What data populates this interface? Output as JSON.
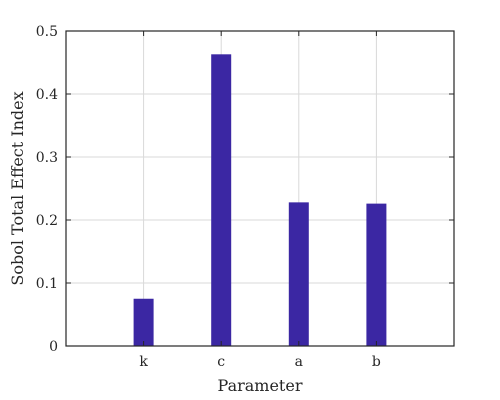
{
  "chart_data": {
    "type": "bar",
    "title": "",
    "xlabel": "Parameter",
    "ylabel": "Sobol Total Effect Index",
    "categories": [
      "k",
      "c",
      "a",
      "b"
    ],
    "values": [
      0.075,
      0.463,
      0.228,
      0.226
    ],
    "ylim": [
      0,
      0.5
    ],
    "yticks": [
      "0",
      "0.1",
      "0.2",
      "0.3",
      "0.4",
      "0.5"
    ],
    "grid": true,
    "bar_color": "#3b27a3",
    "grid_color": "#d9d9d9",
    "axis_color": "#262626"
  }
}
